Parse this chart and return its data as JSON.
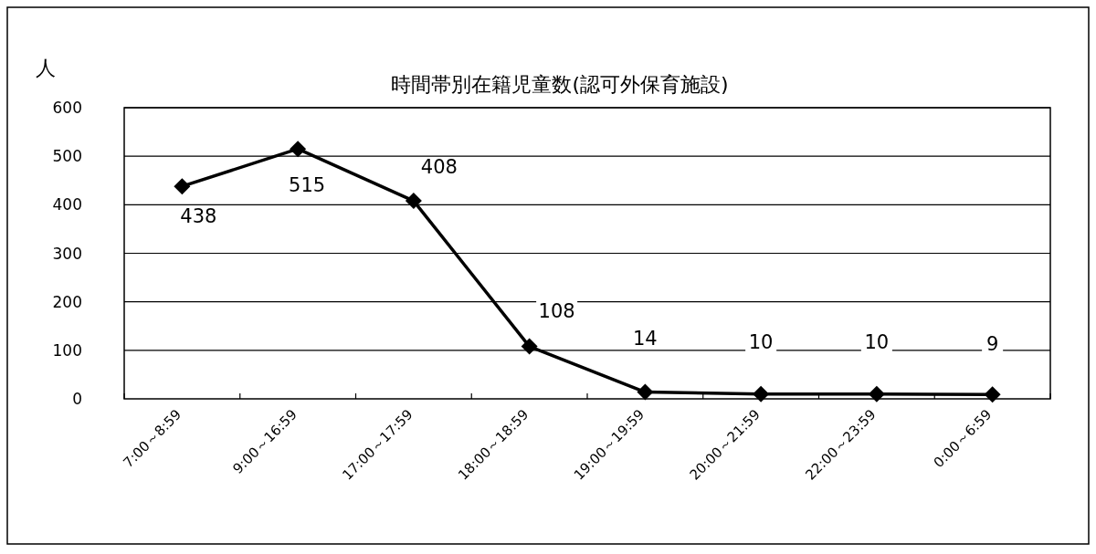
{
  "chart_data": {
    "type": "line",
    "title": "時間帯別在籍児童数(認可外保育施設)",
    "ylabel": "人",
    "categories": [
      "7:00～8:59",
      "9:00～16:59",
      "17:00～17:59",
      "18:00～18:59",
      "19:00～19:59",
      "20:00～21:59",
      "22:00～23:59",
      "0:00～6:59"
    ],
    "values": [
      438,
      515,
      408,
      108,
      14,
      10,
      10,
      9
    ],
    "color": "#000000",
    "ylim": [
      0,
      600
    ],
    "yticks": [
      0,
      100,
      200,
      300,
      400,
      500,
      600
    ],
    "grid": "y",
    "marker": "diamond",
    "data_labels": true
  }
}
